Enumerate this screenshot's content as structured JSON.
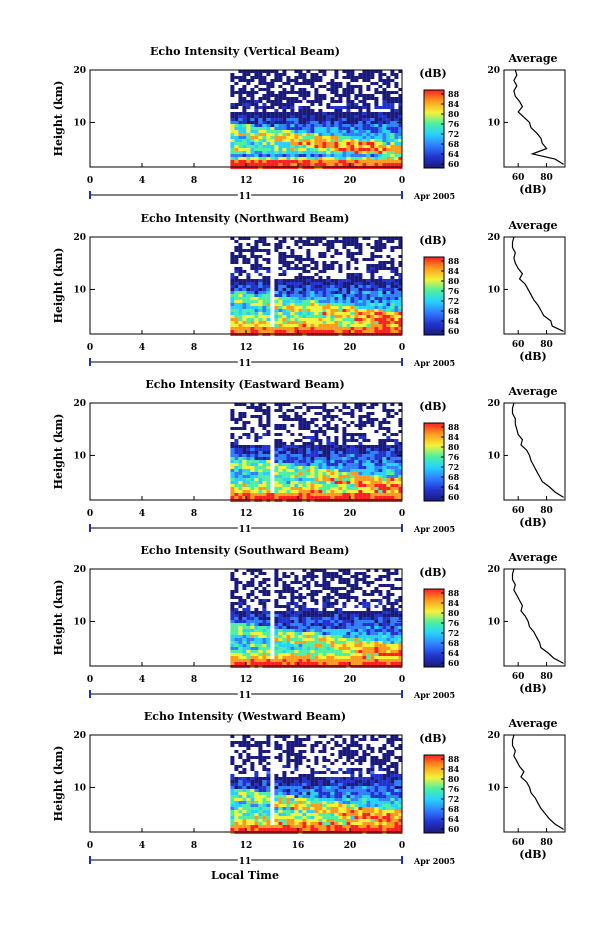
{
  "figure": {
    "x_label": "Local Time",
    "month_label": "Apr 2005",
    "day_label": "11",
    "profile_title": "Average",
    "profile_xlabel": "(dB)",
    "colorbar_unit": "(dB)",
    "height_label": "Height (km)"
  },
  "chart_data": [
    {
      "type": "heatmap",
      "title": "Echo Intensity (Vertical Beam)",
      "xlabel": "Local Time",
      "ylabel": "Height (km)",
      "x_ticks": [
        "0",
        "4",
        "8",
        "12",
        "16",
        "20",
        "0"
      ],
      "y_ticks": [
        "20",
        "10"
      ],
      "xlim": [
        0,
        24
      ],
      "ylim": [
        1.5,
        20
      ],
      "data_start_hour": 10.8,
      "colorbar": {
        "label": "(dB)",
        "ticks": [
          "88",
          "84",
          "80",
          "76",
          "72",
          "68",
          "64",
          "60"
        ],
        "range": [
          60,
          88
        ]
      },
      "profile": {
        "title": "Average",
        "xlabel": "(dB)",
        "x_ticks": [
          "60",
          "80"
        ],
        "y_ticks": [
          "20",
          "10"
        ],
        "heights": [
          2,
          3,
          4,
          5,
          6,
          7,
          8,
          9,
          10,
          11,
          12,
          13,
          14,
          15,
          16,
          17,
          18,
          19,
          20
        ],
        "values": [
          92,
          86,
          70,
          80,
          77,
          76,
          73,
          69,
          68,
          64,
          60,
          63,
          61,
          58,
          57,
          59,
          57,
          59,
          58
        ]
      }
    },
    {
      "type": "heatmap",
      "title": "Echo Intensity (Northward Beam)",
      "xlabel": "Local Time",
      "ylabel": "Height (km)",
      "x_ticks": [
        "0",
        "4",
        "8",
        "12",
        "16",
        "20",
        "0"
      ],
      "y_ticks": [
        "20",
        "10"
      ],
      "xlim": [
        0,
        24
      ],
      "ylim": [
        1.5,
        20
      ],
      "data_start_hour": 10.8,
      "colorbar": {
        "label": "(dB)",
        "ticks": [
          "88",
          "84",
          "80",
          "76",
          "72",
          "68",
          "64",
          "60"
        ],
        "range": [
          60,
          88
        ]
      },
      "profile": {
        "title": "Average",
        "xlabel": "(dB)",
        "x_ticks": [
          "60",
          "80"
        ],
        "y_ticks": [
          "20",
          "10"
        ],
        "heights": [
          2,
          3,
          4,
          5,
          6,
          7,
          8,
          9,
          10,
          11,
          12,
          13,
          14,
          15,
          16,
          17,
          18,
          19,
          20
        ],
        "values": [
          92,
          84,
          83,
          78,
          76,
          74,
          71,
          69,
          67,
          65,
          61,
          63,
          60,
          58,
          57,
          58,
          56,
          56,
          57
        ]
      }
    },
    {
      "type": "heatmap",
      "title": "Echo Intensity (Eastward Beam)",
      "xlabel": "Local Time",
      "ylabel": "Height (km)",
      "x_ticks": [
        "0",
        "4",
        "8",
        "12",
        "16",
        "20",
        "0"
      ],
      "y_ticks": [
        "20",
        "10"
      ],
      "xlim": [
        0,
        24
      ],
      "ylim": [
        1.5,
        20
      ],
      "data_start_hour": 10.8,
      "colorbar": {
        "label": "(dB)",
        "ticks": [
          "88",
          "84",
          "80",
          "76",
          "72",
          "68",
          "64",
          "60"
        ],
        "range": [
          60,
          88
        ]
      },
      "profile": {
        "title": "Average",
        "xlabel": "(dB)",
        "x_ticks": [
          "60",
          "80"
        ],
        "y_ticks": [
          "20",
          "10"
        ],
        "heights": [
          2,
          3,
          4,
          5,
          6,
          7,
          8,
          9,
          10,
          11,
          12,
          13,
          14,
          15,
          16,
          17,
          18,
          19,
          20
        ],
        "values": [
          92,
          86,
          82,
          77,
          75,
          73,
          71,
          69,
          68,
          66,
          62,
          63,
          60,
          59,
          58,
          58,
          56,
          56,
          57
        ]
      }
    },
    {
      "type": "heatmap",
      "title": "Echo Intensity (Southward Beam)",
      "xlabel": "Local Time",
      "ylabel": "Height (km)",
      "x_ticks": [
        "0",
        "4",
        "8",
        "12",
        "16",
        "20",
        "0"
      ],
      "y_ticks": [
        "20",
        "10"
      ],
      "xlim": [
        0,
        24
      ],
      "ylim": [
        1.5,
        20
      ],
      "data_start_hour": 10.8,
      "colorbar": {
        "label": "(dB)",
        "ticks": [
          "88",
          "84",
          "80",
          "76",
          "72",
          "68",
          "64",
          "60"
        ],
        "range": [
          60,
          88
        ]
      },
      "profile": {
        "title": "Average",
        "xlabel": "(dB)",
        "x_ticks": [
          "60",
          "80"
        ],
        "y_ticks": [
          "20",
          "10"
        ],
        "heights": [
          2,
          3,
          4,
          5,
          6,
          7,
          8,
          9,
          10,
          11,
          12,
          13,
          14,
          15,
          16,
          17,
          18,
          19,
          20
        ],
        "values": [
          92,
          85,
          81,
          76,
          75,
          73,
          71,
          68,
          67,
          65,
          62,
          63,
          61,
          59,
          57,
          58,
          56,
          56,
          57
        ]
      }
    },
    {
      "type": "heatmap",
      "title": "Echo Intensity (Westward Beam)",
      "xlabel": "Local Time",
      "ylabel": "Height (km)",
      "x_ticks": [
        "0",
        "4",
        "8",
        "12",
        "16",
        "20",
        "0"
      ],
      "y_ticks": [
        "20",
        "10"
      ],
      "xlim": [
        0,
        24
      ],
      "ylim": [
        1.5,
        20
      ],
      "data_start_hour": 10.8,
      "colorbar": {
        "label": "(dB)",
        "ticks": [
          "88",
          "84",
          "80",
          "76",
          "72",
          "68",
          "64",
          "60"
        ],
        "range": [
          60,
          88
        ]
      },
      "profile": {
        "title": "Average",
        "xlabel": "(dB)",
        "x_ticks": [
          "60",
          "80"
        ],
        "y_ticks": [
          "20",
          "10"
        ],
        "heights": [
          2,
          3,
          4,
          5,
          6,
          7,
          8,
          9,
          10,
          11,
          12,
          13,
          14,
          15,
          16,
          17,
          18,
          19,
          20
        ],
        "values": [
          92,
          86,
          82,
          79,
          76,
          74,
          72,
          69,
          68,
          66,
          62,
          64,
          61,
          59,
          57,
          58,
          56,
          56,
          57
        ]
      }
    }
  ]
}
